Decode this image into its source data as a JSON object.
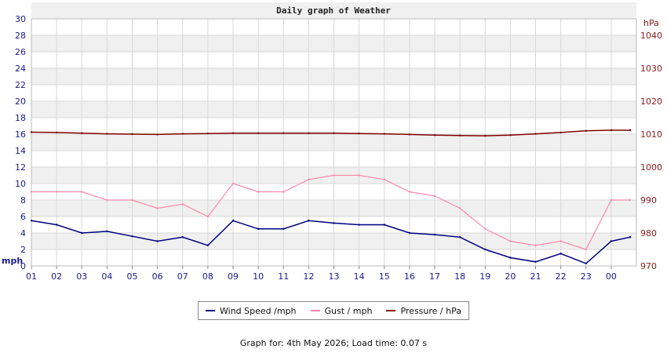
{
  "chart_data": {
    "type": "line",
    "title": "Daily graph of Weather",
    "left_axis": {
      "unit": "mph",
      "min": 0,
      "max": 30,
      "ticks": [
        "0",
        "2",
        "4",
        "6",
        "8",
        "10",
        "12",
        "14",
        "16",
        "18",
        "20",
        "22",
        "24",
        "26",
        "28",
        "30"
      ],
      "color": "#1a1a8c"
    },
    "right_axis": {
      "unit": "hPa",
      "min": 970,
      "max": 1045,
      "ticks": [
        "970",
        "980",
        "990",
        "1000",
        "1010",
        "1020",
        "1030",
        "1040"
      ],
      "color": "#8b1a1a"
    },
    "x_ticks": [
      "01",
      "02",
      "03",
      "04",
      "05",
      "06",
      "07",
      "08",
      "09",
      "10",
      "11",
      "12",
      "13",
      "14",
      "15",
      "16",
      "17",
      "18",
      "19",
      "20",
      "21",
      "22",
      "23",
      "00"
    ],
    "grid": true,
    "legend_position": "bottom",
    "series": [
      {
        "name": "Wind Speed /mph",
        "axis": "left",
        "color": "#00007f",
        "hours": [
          0,
          1,
          2,
          3,
          4,
          5,
          6,
          7,
          8,
          9,
          10,
          11,
          12,
          13,
          14,
          15,
          16,
          17,
          18,
          19,
          20,
          21,
          22,
          23,
          23.75
        ],
        "values": [
          5.5,
          5.0,
          4.0,
          4.2,
          3.6,
          3.0,
          3.5,
          2.5,
          5.5,
          4.5,
          4.5,
          5.5,
          5.2,
          5.0,
          5.0,
          4.0,
          3.8,
          3.5,
          2.0,
          1.0,
          0.5,
          1.5,
          0.3,
          3.0,
          3.5
        ]
      },
      {
        "name": "Gust / mph",
        "axis": "left",
        "color": "#ff88aa",
        "hours": [
          0,
          1,
          2,
          3,
          4,
          5,
          6,
          7,
          8,
          9,
          10,
          11,
          12,
          13,
          14,
          15,
          16,
          17,
          18,
          19,
          20,
          21,
          22,
          23,
          23.75
        ],
        "values": [
          9.0,
          9.0,
          9.0,
          8.0,
          8.0,
          7.0,
          7.5,
          6.0,
          10.0,
          9.0,
          9.0,
          10.5,
          11.0,
          11.0,
          10.5,
          9.0,
          8.5,
          7.0,
          4.5,
          3.0,
          2.5,
          3.0,
          2.0,
          8.0,
          8.0
        ]
      },
      {
        "name": "Pressure / hPa",
        "axis": "right",
        "color": "#7f0000",
        "hours": [
          0,
          1,
          2,
          3,
          4,
          5,
          6,
          7,
          8,
          9,
          10,
          11,
          12,
          13,
          14,
          15,
          16,
          17,
          18,
          19,
          20,
          21,
          22,
          23,
          23.75
        ],
        "values": [
          1010.6,
          1010.5,
          1010.3,
          1010.1,
          1010.0,
          1009.9,
          1010.1,
          1010.2,
          1010.3,
          1010.3,
          1010.3,
          1010.3,
          1010.3,
          1010.2,
          1010.1,
          1009.9,
          1009.7,
          1009.6,
          1009.5,
          1009.7,
          1010.1,
          1010.5,
          1011.0,
          1011.2,
          1011.2
        ]
      }
    ]
  },
  "footer": "Graph for: 4th May 2026; Load time: 0.07 s"
}
